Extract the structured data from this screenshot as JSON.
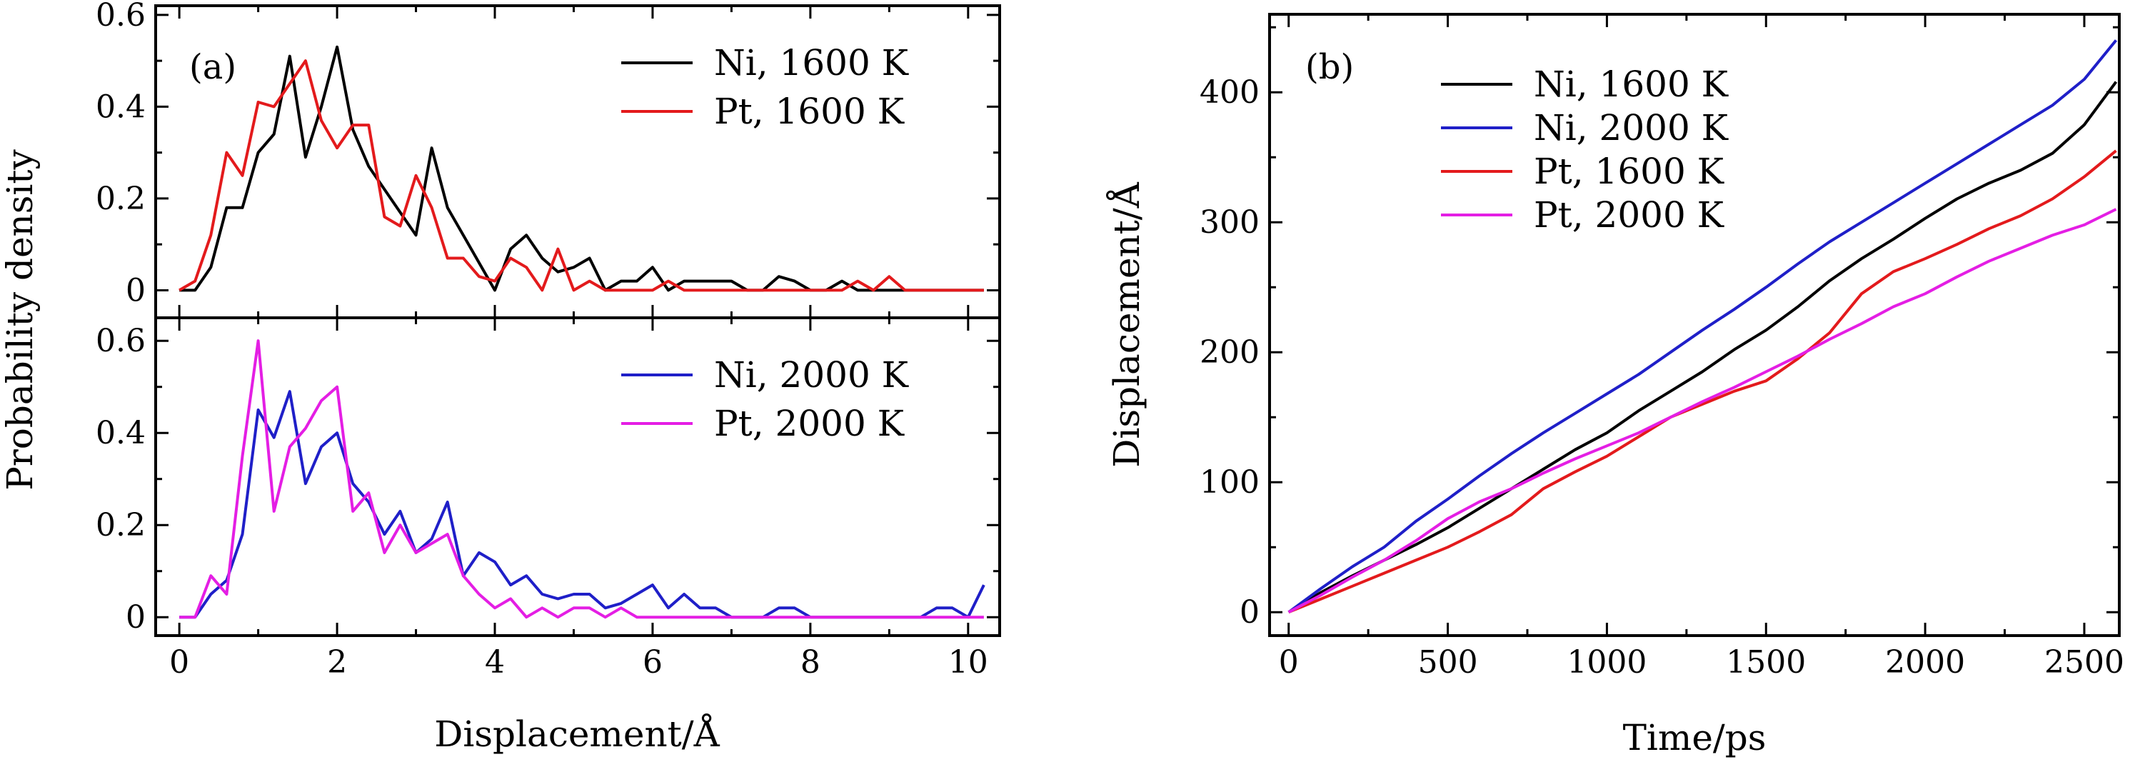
{
  "colors": {
    "ni_1600": "#000000",
    "pt_1600": "#e31a1c",
    "ni_2000": "#1f1fc8",
    "pt_2000": "#e41ee4"
  },
  "chart_data": [
    {
      "id": "panel_a",
      "type": "line",
      "panel_label": "(a)",
      "xlabel": "Displacement/Å",
      "ylabel": "Probability density",
      "xlim": [
        -0.3,
        10.4
      ],
      "xticks": [
        0,
        2,
        4,
        6,
        8,
        10
      ],
      "subplots": [
        {
          "id": "top",
          "ylim": [
            -0.06,
            0.62
          ],
          "yticks": [
            0,
            0.2,
            0.4,
            0.6
          ],
          "ytick_labels": [
            "0",
            "0.2",
            "0.4",
            "0.6"
          ],
          "legend_position": "top-right",
          "series": [
            {
              "name": "Ni, 1600 K",
              "color_key": "ni_1600",
              "x": [
                0,
                0.2,
                0.4,
                0.6,
                0.8,
                1.0,
                1.2,
                1.4,
                1.6,
                1.8,
                2.0,
                2.2,
                2.4,
                2.6,
                2.8,
                3.0,
                3.2,
                3.4,
                3.6,
                3.8,
                4.0,
                4.2,
                4.4,
                4.6,
                4.8,
                5.0,
                5.2,
                5.4,
                5.6,
                5.8,
                6.0,
                6.2,
                6.4,
                6.6,
                6.8,
                7.0,
                7.2,
                7.4,
                7.6,
                7.8,
                8.0,
                8.2,
                8.4,
                8.6,
                8.8,
                9.0,
                9.2,
                9.4,
                9.6,
                9.8,
                10.0,
                10.2
              ],
              "y": [
                0,
                0,
                0.05,
                0.18,
                0.18,
                0.3,
                0.34,
                0.51,
                0.29,
                0.4,
                0.53,
                0.35,
                0.27,
                0.22,
                0.17,
                0.12,
                0.31,
                0.18,
                0.12,
                0.06,
                0,
                0.09,
                0.12,
                0.07,
                0.04,
                0.05,
                0.07,
                0,
                0.02,
                0.02,
                0.05,
                0,
                0.02,
                0.02,
                0.02,
                0.02,
                0,
                0,
                0.03,
                0.02,
                0,
                0,
                0.02,
                0,
                0,
                0,
                0,
                0,
                0,
                0,
                0,
                0
              ]
            },
            {
              "name": "Pt, 1600 K",
              "color_key": "pt_1600",
              "x": [
                0,
                0.2,
                0.4,
                0.6,
                0.8,
                1.0,
                1.2,
                1.4,
                1.6,
                1.8,
                2.0,
                2.2,
                2.4,
                2.6,
                2.8,
                3.0,
                3.2,
                3.4,
                3.6,
                3.8,
                4.0,
                4.2,
                4.4,
                4.6,
                4.8,
                5.0,
                5.2,
                5.4,
                5.6,
                5.8,
                6.0,
                6.2,
                6.4,
                6.6,
                6.8,
                7.0,
                7.2,
                7.4,
                7.6,
                7.8,
                8.0,
                8.2,
                8.4,
                8.6,
                8.8,
                9.0,
                9.2,
                9.4,
                9.6,
                9.8,
                10.0,
                10.2
              ],
              "y": [
                0,
                0.02,
                0.12,
                0.3,
                0.25,
                0.41,
                0.4,
                0.45,
                0.5,
                0.37,
                0.31,
                0.36,
                0.36,
                0.16,
                0.14,
                0.25,
                0.18,
                0.07,
                0.07,
                0.03,
                0.02,
                0.07,
                0.05,
                0,
                0.09,
                0,
                0.02,
                0,
                0,
                0,
                0,
                0.02,
                0,
                0,
                0,
                0,
                0,
                0,
                0,
                0,
                0,
                0,
                0,
                0.02,
                0,
                0.03,
                0,
                0,
                0,
                0,
                0,
                0
              ]
            }
          ]
        },
        {
          "id": "bottom",
          "ylim": [
            -0.04,
            0.65
          ],
          "yticks": [
            0,
            0.2,
            0.4,
            0.6
          ],
          "ytick_labels": [
            "0",
            "0.2",
            "0.4",
            "0.6"
          ],
          "legend_position": "top-right",
          "series": [
            {
              "name": "Ni, 2000 K",
              "color_key": "ni_2000",
              "x": [
                0,
                0.2,
                0.4,
                0.6,
                0.8,
                1.0,
                1.2,
                1.4,
                1.6,
                1.8,
                2.0,
                2.2,
                2.4,
                2.6,
                2.8,
                3.0,
                3.2,
                3.4,
                3.6,
                3.8,
                4.0,
                4.2,
                4.4,
                4.6,
                4.8,
                5.0,
                5.2,
                5.4,
                5.6,
                5.8,
                6.0,
                6.2,
                6.4,
                6.6,
                6.8,
                7.0,
                7.2,
                7.4,
                7.6,
                7.8,
                8.0,
                8.2,
                8.4,
                8.6,
                8.8,
                9.0,
                9.2,
                9.4,
                9.6,
                9.8,
                10.0,
                10.2
              ],
              "y": [
                0,
                0,
                0.05,
                0.08,
                0.18,
                0.45,
                0.39,
                0.49,
                0.29,
                0.37,
                0.4,
                0.29,
                0.25,
                0.18,
                0.23,
                0.14,
                0.17,
                0.25,
                0.09,
                0.14,
                0.12,
                0.07,
                0.09,
                0.05,
                0.04,
                0.05,
                0.05,
                0.02,
                0.03,
                0.05,
                0.07,
                0.02,
                0.05,
                0.02,
                0.02,
                0,
                0,
                0,
                0.02,
                0.02,
                0,
                0,
                0,
                0,
                0,
                0,
                0,
                0,
                0.02,
                0.02,
                0,
                0.07
              ]
            },
            {
              "name": "Pt, 2000 K",
              "color_key": "pt_2000",
              "x": [
                0,
                0.2,
                0.4,
                0.6,
                0.8,
                1.0,
                1.2,
                1.4,
                1.6,
                1.8,
                2.0,
                2.2,
                2.4,
                2.6,
                2.8,
                3.0,
                3.2,
                3.4,
                3.6,
                3.8,
                4.0,
                4.2,
                4.4,
                4.6,
                4.8,
                5.0,
                5.2,
                5.4,
                5.6,
                5.8,
                6.0,
                6.2,
                6.4,
                6.6,
                6.8,
                7.0,
                7.2,
                7.4,
                7.6,
                7.8,
                8.0,
                8.2,
                8.4,
                8.6,
                8.8,
                9.0,
                9.2,
                9.4,
                9.6,
                9.8,
                10.0,
                10.2
              ],
              "y": [
                0,
                0,
                0.09,
                0.05,
                0.35,
                0.6,
                0.23,
                0.37,
                0.41,
                0.47,
                0.5,
                0.23,
                0.27,
                0.14,
                0.2,
                0.14,
                0.16,
                0.18,
                0.09,
                0.05,
                0.02,
                0.04,
                0,
                0.02,
                0,
                0.02,
                0.02,
                0,
                0.02,
                0,
                0,
                0,
                0,
                0,
                0,
                0,
                0,
                0,
                0,
                0,
                0,
                0,
                0,
                0,
                0,
                0,
                0,
                0,
                0,
                0,
                0,
                0
              ]
            }
          ]
        }
      ]
    },
    {
      "id": "panel_b",
      "type": "line",
      "panel_label": "(b)",
      "xlabel": "Time/ps",
      "ylabel": "Displacement/Å",
      "xlim": [
        -60,
        2610
      ],
      "ylim": [
        -18,
        460
      ],
      "xticks": [
        0,
        500,
        1000,
        1500,
        2000,
        2500
      ],
      "yticks": [
        0,
        100,
        200,
        300,
        400
      ],
      "legend_position": "top-left",
      "series": [
        {
          "name": "Ni, 1600 K",
          "color_key": "ni_1600",
          "x": [
            0,
            100,
            200,
            300,
            400,
            500,
            600,
            700,
            800,
            900,
            1000,
            1100,
            1200,
            1300,
            1400,
            1500,
            1600,
            1700,
            1800,
            1900,
            2000,
            2100,
            2200,
            2300,
            2400,
            2500,
            2600
          ],
          "y": [
            0,
            15,
            28,
            40,
            52,
            65,
            80,
            95,
            110,
            125,
            138,
            155,
            170,
            185,
            202,
            217,
            235,
            255,
            272,
            287,
            303,
            318,
            330,
            340,
            353,
            375,
            408
          ]
        },
        {
          "name": "Ni, 2000 K",
          "color_key": "ni_2000",
          "x": [
            0,
            100,
            200,
            300,
            400,
            500,
            600,
            700,
            800,
            900,
            1000,
            1100,
            1200,
            1300,
            1400,
            1500,
            1600,
            1700,
            1800,
            1900,
            2000,
            2100,
            2200,
            2300,
            2400,
            2500,
            2600
          ],
          "y": [
            0,
            18,
            35,
            50,
            70,
            87,
            105,
            122,
            138,
            153,
            168,
            183,
            200,
            217,
            233,
            250,
            268,
            285,
            300,
            315,
            330,
            345,
            360,
            375,
            390,
            410,
            440
          ]
        },
        {
          "name": "Pt, 1600 K",
          "color_key": "pt_1600",
          "x": [
            0,
            100,
            200,
            300,
            400,
            500,
            600,
            700,
            800,
            900,
            1000,
            1100,
            1200,
            1300,
            1400,
            1500,
            1600,
            1700,
            1800,
            1900,
            2000,
            2100,
            2200,
            2300,
            2400,
            2500,
            2600
          ],
          "y": [
            0,
            10,
            20,
            30,
            40,
            50,
            62,
            75,
            95,
            108,
            120,
            135,
            150,
            160,
            170,
            178,
            195,
            215,
            245,
            262,
            272,
            283,
            295,
            305,
            318,
            335,
            355
          ]
        },
        {
          "name": "Pt, 2000 K",
          "color_key": "pt_2000",
          "x": [
            0,
            100,
            200,
            300,
            400,
            500,
            600,
            700,
            800,
            900,
            1000,
            1100,
            1200,
            1300,
            1400,
            1500,
            1600,
            1700,
            1800,
            1900,
            2000,
            2100,
            2200,
            2300,
            2400,
            2500,
            2600
          ],
          "y": [
            0,
            13,
            27,
            40,
            55,
            72,
            85,
            95,
            107,
            118,
            128,
            138,
            150,
            162,
            173,
            185,
            197,
            210,
            222,
            235,
            245,
            258,
            270,
            280,
            290,
            298,
            310
          ]
        }
      ]
    }
  ]
}
